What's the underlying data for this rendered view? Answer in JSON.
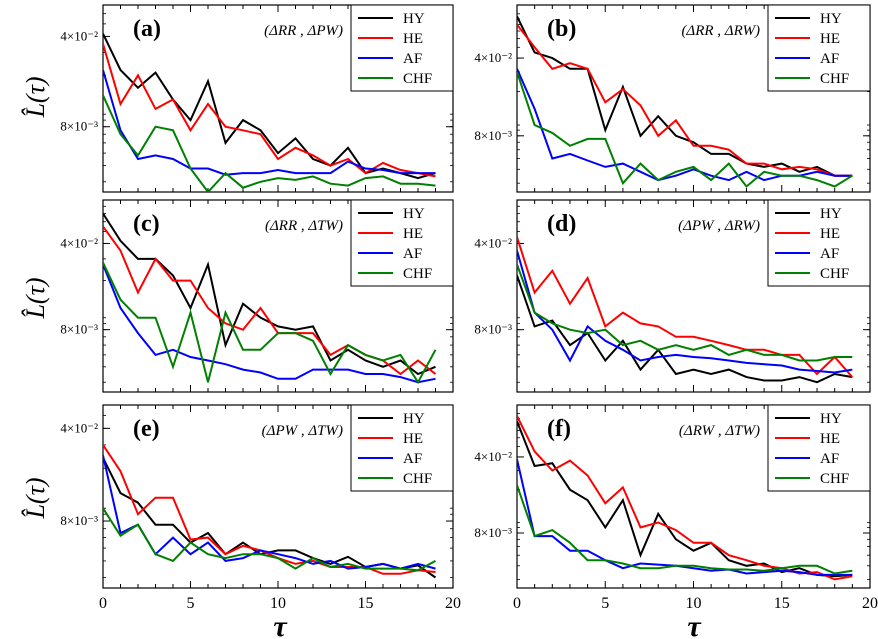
{
  "chart_data": {
    "type": "line",
    "shared": {
      "xlabel": "τ",
      "ylabel": "L̂(τ)",
      "xlim": [
        0,
        20
      ],
      "xticks": [
        "0",
        "5",
        "10",
        "15",
        "20"
      ],
      "ylog": true,
      "colors": {
        "HY": "#000000",
        "HE": "#ff0000",
        "AF": "#0000ff",
        "CHF": "#008000"
      },
      "legend_entries": [
        "HY",
        "HE",
        "AF",
        "CHF"
      ]
    },
    "panels": [
      {
        "label": "(a)",
        "pair": "(ΔRR , ΔPW)",
        "ylim": [
          0.0025,
          0.07
        ],
        "yticks": [
          {
            "value": 0.04,
            "label": "4×10⁻²"
          },
          {
            "value": 0.008,
            "label": "8×10⁻³"
          }
        ],
        "x": [
          0,
          1,
          2,
          3,
          4,
          5,
          6,
          7,
          8,
          9,
          10,
          11,
          12,
          13,
          14,
          15,
          16,
          17,
          18,
          19
        ],
        "series": [
          {
            "name": "HY",
            "values": [
              0.042,
              0.022,
              0.016,
              0.021,
              0.013,
              0.009,
              0.018,
              0.006,
              0.009,
              0.0075,
              0.005,
              0.0065,
              0.0045,
              0.004,
              0.0055,
              0.0035,
              0.0038,
              0.0035,
              0.0032,
              0.0035
            ]
          },
          {
            "name": "HE",
            "values": [
              0.035,
              0.012,
              0.02,
              0.011,
              0.013,
              0.0075,
              0.012,
              0.008,
              0.0075,
              0.007,
              0.0045,
              0.0055,
              0.0048,
              0.004,
              0.0045,
              0.0035,
              0.0042,
              0.0037,
              0.0035,
              0.0033
            ]
          },
          {
            "name": "AF",
            "values": [
              0.022,
              0.0075,
              0.0045,
              0.0048,
              0.0045,
              0.0038,
              0.0038,
              0.0034,
              0.0035,
              0.0035,
              0.0037,
              0.0035,
              0.0035,
              0.0035,
              0.0043,
              0.0038,
              0.0037,
              0.0035,
              0.0035,
              0.0035
            ]
          },
          {
            "name": "CHF",
            "values": [
              0.014,
              0.007,
              0.0048,
              0.008,
              0.0075,
              0.0038,
              0.0025,
              0.0035,
              0.0027,
              0.003,
              0.0032,
              0.0031,
              0.0033,
              0.0029,
              0.0028,
              0.0032,
              0.0033,
              0.0029,
              0.0029,
              0.0028
            ]
          }
        ]
      },
      {
        "label": "(b)",
        "pair": "(ΔRR , ΔRW)",
        "ylim": [
          0.0025,
          0.12
        ],
        "yticks": [
          {
            "value": 0.04,
            "label": "4×10⁻²"
          },
          {
            "value": 0.008,
            "label": "8×10⁻³"
          }
        ],
        "x": [
          0,
          1,
          2,
          3,
          4,
          5,
          6,
          7,
          8,
          9,
          10,
          11,
          12,
          13,
          14,
          15,
          16,
          17,
          18,
          19
        ],
        "series": [
          {
            "name": "HY",
            "values": [
              0.095,
              0.045,
              0.04,
              0.032,
              0.032,
              0.009,
              0.022,
              0.008,
              0.012,
              0.008,
              0.007,
              0.0055,
              0.0055,
              0.0045,
              0.0042,
              0.0045,
              0.0038,
              0.0042,
              0.0035,
              0.0035
            ]
          },
          {
            "name": "HE",
            "values": [
              0.08,
              0.05,
              0.032,
              0.036,
              0.032,
              0.016,
              0.021,
              0.015,
              0.008,
              0.011,
              0.0065,
              0.0065,
              0.006,
              0.0045,
              0.0045,
              0.004,
              0.0042,
              0.004,
              0.0035,
              0.0035
            ]
          },
          {
            "name": "AF",
            "values": [
              0.032,
              0.014,
              0.005,
              0.0055,
              0.0048,
              0.0042,
              0.0045,
              0.0038,
              0.0032,
              0.0035,
              0.004,
              0.0035,
              0.0032,
              0.0038,
              0.0032,
              0.0035,
              0.0035,
              0.0038,
              0.0035,
              0.0035
            ]
          },
          {
            "name": "CHF",
            "values": [
              0.03,
              0.01,
              0.0085,
              0.0065,
              0.0075,
              0.0075,
              0.003,
              0.0045,
              0.0032,
              0.0038,
              0.0042,
              0.0032,
              0.0045,
              0.0028,
              0.0038,
              0.0035,
              0.0035,
              0.0032,
              0.0028,
              0.0035
            ]
          }
        ]
      },
      {
        "label": "(c)",
        "pair": "(ΔRR , ΔTW)",
        "ylim": [
          0.0025,
          0.09
        ],
        "yticks": [
          {
            "value": 0.04,
            "label": "4×10⁻²"
          },
          {
            "value": 0.008,
            "label": "8×10⁻³"
          }
        ],
        "x": [
          0,
          1,
          2,
          3,
          4,
          5,
          6,
          7,
          8,
          9,
          10,
          11,
          12,
          13,
          14,
          15,
          16,
          17,
          18,
          19
        ],
        "series": [
          {
            "name": "HY",
            "values": [
              0.07,
              0.042,
              0.03,
              0.03,
              0.022,
              0.012,
              0.027,
              0.006,
              0.013,
              0.01,
              0.0085,
              0.008,
              0.0085,
              0.0045,
              0.0055,
              0.0045,
              0.004,
              0.0045,
              0.0035,
              0.004
            ]
          },
          {
            "name": "HE",
            "values": [
              0.055,
              0.035,
              0.016,
              0.03,
              0.02,
              0.02,
              0.012,
              0.009,
              0.008,
              0.012,
              0.0075,
              0.0075,
              0.0075,
              0.005,
              0.006,
              0.005,
              0.0045,
              0.0035,
              0.0045,
              0.0035
            ]
          },
          {
            "name": "AF",
            "values": [
              0.027,
              0.012,
              0.0075,
              0.005,
              0.0055,
              0.0048,
              0.0045,
              0.0042,
              0.0038,
              0.0036,
              0.0032,
              0.0032,
              0.0038,
              0.0038,
              0.0038,
              0.0035,
              0.0035,
              0.0033,
              0.003,
              0.0032
            ]
          },
          {
            "name": "CHF",
            "values": [
              0.028,
              0.014,
              0.01,
              0.01,
              0.004,
              0.011,
              0.003,
              0.011,
              0.0055,
              0.0055,
              0.0075,
              0.0075,
              0.0065,
              0.0035,
              0.006,
              0.005,
              0.0045,
              0.005,
              0.003,
              0.0055
            ]
          }
        ]
      },
      {
        "label": "(d)",
        "pair": "(ΔPW , ΔRW)",
        "ylim": [
          0.0025,
          0.09
        ],
        "yticks": [
          {
            "value": 0.04,
            "label": "4×10⁻²"
          },
          {
            "value": 0.008,
            "label": "8×10⁻³"
          }
        ],
        "x": [
          0,
          1,
          2,
          3,
          4,
          5,
          6,
          7,
          8,
          9,
          10,
          11,
          12,
          13,
          14,
          15,
          16,
          17,
          18,
          19
        ],
        "series": [
          {
            "name": "HY",
            "values": [
              0.022,
              0.0085,
              0.0095,
              0.006,
              0.0075,
              0.0045,
              0.0065,
              0.0038,
              0.0055,
              0.0035,
              0.0038,
              0.0035,
              0.0038,
              0.0033,
              0.0031,
              0.0031,
              0.0033,
              0.003,
              0.0035,
              0.0033
            ]
          },
          {
            "name": "HE",
            "values": [
              0.045,
              0.016,
              0.024,
              0.013,
              0.021,
              0.0085,
              0.011,
              0.009,
              0.0085,
              0.007,
              0.007,
              0.0065,
              0.006,
              0.0055,
              0.0055,
              0.005,
              0.005,
              0.0035,
              0.0048,
              0.0033
            ]
          },
          {
            "name": "AF",
            "values": [
              0.035,
              0.011,
              0.008,
              0.0045,
              0.0085,
              0.0065,
              0.0055,
              0.0045,
              0.0048,
              0.005,
              0.0048,
              0.0047,
              0.0045,
              0.0043,
              0.0042,
              0.0041,
              0.0038,
              0.0037,
              0.0036,
              0.0038
            ]
          },
          {
            "name": "CHF",
            "values": [
              0.027,
              0.011,
              0.009,
              0.008,
              0.0075,
              0.008,
              0.006,
              0.0065,
              0.0055,
              0.006,
              0.0055,
              0.006,
              0.005,
              0.0055,
              0.005,
              0.005,
              0.0045,
              0.0045,
              0.0048,
              0.0048
            ]
          }
        ]
      },
      {
        "label": "(e)",
        "pair": "(ΔPW , ΔTW)",
        "ylim": [
          0.0025,
          0.06
        ],
        "yticks": [
          {
            "value": 0.04,
            "label": "4×10⁻²"
          },
          {
            "value": 0.008,
            "label": "8×10⁻³"
          }
        ],
        "x": [
          0,
          1,
          2,
          3,
          4,
          5,
          6,
          7,
          8,
          9,
          10,
          11,
          12,
          13,
          14,
          15,
          16,
          17,
          18,
          19
        ],
        "series": [
          {
            "name": "HY",
            "values": [
              0.024,
              0.013,
              0.011,
              0.0075,
              0.0075,
              0.0055,
              0.0065,
              0.0045,
              0.0055,
              0.0045,
              0.0048,
              0.0048,
              0.0042,
              0.0038,
              0.0043,
              0.0036,
              0.0038,
              0.0035,
              0.0037,
              0.003
            ]
          },
          {
            "name": "HE",
            "values": [
              0.03,
              0.019,
              0.009,
              0.012,
              0.012,
              0.0058,
              0.006,
              0.0045,
              0.0052,
              0.0048,
              0.0042,
              0.0038,
              0.004,
              0.0036,
              0.0036,
              0.0036,
              0.0032,
              0.0032,
              0.0034,
              0.0033
            ]
          },
          {
            "name": "AF",
            "values": [
              0.025,
              0.0065,
              0.0075,
              0.0045,
              0.006,
              0.0045,
              0.0055,
              0.004,
              0.0042,
              0.0048,
              0.0045,
              0.0042,
              0.0038,
              0.004,
              0.0035,
              0.0036,
              0.0038,
              0.0035,
              0.0038,
              0.0035
            ]
          },
          {
            "name": "CHF",
            "values": [
              0.01,
              0.0062,
              0.0075,
              0.0045,
              0.004,
              0.0055,
              0.0045,
              0.0042,
              0.0045,
              0.0045,
              0.0042,
              0.0035,
              0.0042,
              0.0036,
              0.0038,
              0.0035,
              0.0035,
              0.0035,
              0.0034,
              0.004
            ]
          }
        ]
      },
      {
        "label": "(f)",
        "pair": "(ΔRW , ΔTW)",
        "ylim": [
          0.0025,
          0.12
        ],
        "yticks": [
          {
            "value": 0.04,
            "label": "4×10⁻²"
          },
          {
            "value": 0.008,
            "label": "8×10⁻³"
          }
        ],
        "x": [
          0,
          1,
          2,
          3,
          4,
          5,
          6,
          7,
          8,
          9,
          10,
          11,
          12,
          13,
          14,
          15,
          16,
          17,
          18,
          19
        ],
        "series": [
          {
            "name": "HY",
            "values": [
              0.085,
              0.033,
              0.035,
              0.02,
              0.016,
              0.009,
              0.016,
              0.005,
              0.012,
              0.007,
              0.0055,
              0.0065,
              0.0045,
              0.004,
              0.0042,
              0.0035,
              0.0038,
              0.0033,
              0.0032,
              0.0033
            ]
          },
          {
            "name": "HE",
            "values": [
              0.095,
              0.045,
              0.03,
              0.037,
              0.027,
              0.015,
              0.021,
              0.009,
              0.01,
              0.0085,
              0.0065,
              0.0065,
              0.005,
              0.0045,
              0.004,
              0.0038,
              0.0034,
              0.0035,
              0.003,
              0.0032
            ]
          },
          {
            "name": "AF",
            "values": [
              0.038,
              0.0075,
              0.0075,
              0.0055,
              0.0055,
              0.0045,
              0.0038,
              0.0042,
              0.0041,
              0.004,
              0.0038,
              0.0036,
              0.0037,
              0.0034,
              0.0035,
              0.0036,
              0.0035,
              0.0033,
              0.0033,
              0.0033
            ]
          },
          {
            "name": "CHF",
            "values": [
              0.022,
              0.0075,
              0.0085,
              0.0065,
              0.0045,
              0.0045,
              0.0042,
              0.0038,
              0.0038,
              0.004,
              0.004,
              0.0038,
              0.0037,
              0.0037,
              0.0036,
              0.0038,
              0.004,
              0.004,
              0.0034,
              0.0036
            ]
          }
        ]
      }
    ]
  }
}
